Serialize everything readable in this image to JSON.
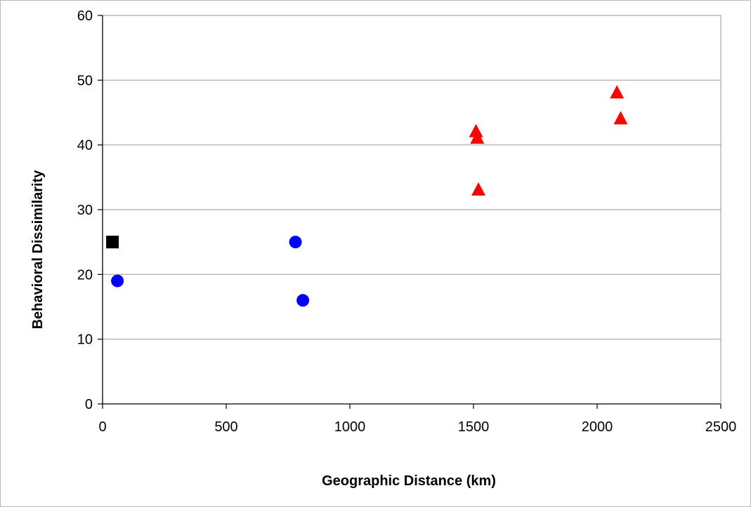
{
  "chart_data": {
    "type": "scatter",
    "title": "",
    "xlabel": "Geographic Distance (km)",
    "ylabel": "Behavioral Dissimilarity",
    "xlim": [
      0,
      2500
    ],
    "ylim": [
      0,
      60
    ],
    "x_ticks": [
      0,
      500,
      1000,
      1500,
      2000,
      2500
    ],
    "y_ticks": [
      0,
      10,
      20,
      30,
      40,
      50,
      60
    ],
    "grid": "horizontal",
    "legend": "none",
    "series": [
      {
        "marker": "square",
        "color": "#000000",
        "points": [
          {
            "x": 40,
            "y": 25
          }
        ]
      },
      {
        "marker": "circle",
        "color": "#0000ff",
        "points": [
          {
            "x": 60,
            "y": 19
          },
          {
            "x": 780,
            "y": 25
          },
          {
            "x": 810,
            "y": 16
          }
        ]
      },
      {
        "marker": "triangle",
        "color": "#ff0000",
        "points": [
          {
            "x": 1510,
            "y": 42
          },
          {
            "x": 1515,
            "y": 41
          },
          {
            "x": 1520,
            "y": 33
          },
          {
            "x": 2080,
            "y": 48
          },
          {
            "x": 2095,
            "y": 44
          }
        ]
      }
    ]
  }
}
